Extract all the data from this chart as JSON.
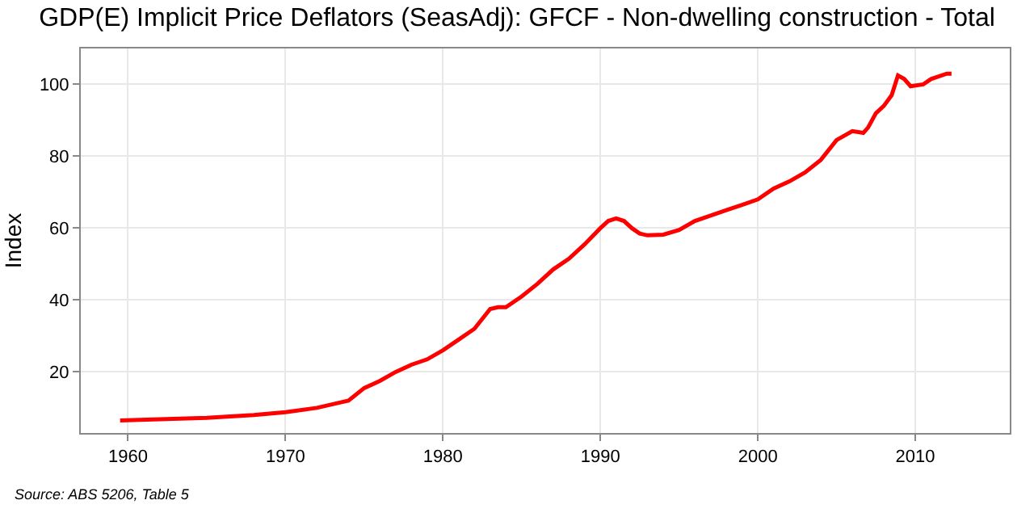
{
  "chart_data": {
    "type": "line",
    "title": "GDP(E) Implicit Price Deflators (SeasAdj): GFCF - Non-dwelling construction - Total",
    "ylabel": "Index",
    "annotations": [
      "Source: ABS 5206, Table 5"
    ],
    "x": [
      1959.5,
      1962,
      1965,
      1968,
      1970,
      1972,
      1973.5,
      1974,
      1975,
      1976,
      1977,
      1978,
      1979,
      1980,
      1981,
      1982,
      1983,
      1983.5,
      1984,
      1985,
      1986,
      1987,
      1988,
      1989,
      1990,
      1990.5,
      1991,
      1991.5,
      1992,
      1992.5,
      1993,
      1994,
      1995,
      1996,
      1997,
      1998,
      1999,
      2000,
      2001,
      2002,
      2003,
      2004,
      2005,
      2006,
      2006.7,
      2007,
      2007.5,
      2008,
      2008.5,
      2008.9,
      2009.3,
      2009.7,
      2010.5,
      2011,
      2012,
      2012.3
    ],
    "series": [
      {
        "color": "#ff0000",
        "values": [
          6.5,
          6.8,
          7.2,
          8,
          8.8,
          10,
          11.5,
          12,
          15.5,
          17.5,
          20,
          22,
          23.5,
          26,
          29,
          32,
          37.5,
          38,
          38,
          41,
          44.5,
          48.5,
          51.5,
          55.5,
          60,
          62,
          62.7,
          62,
          60,
          58.5,
          58,
          58.2,
          59.5,
          62,
          63.5,
          65,
          66.5,
          68,
          71,
          73,
          75.5,
          79,
          84.5,
          87,
          86.5,
          88,
          92,
          94,
          97,
          102.5,
          101.5,
          99.5,
          100,
          101.5,
          103,
          103
        ]
      }
    ],
    "xlim": [
      1957,
      2016
    ],
    "xticks": [
      1960,
      1970,
      1980,
      1990,
      2000,
      2010
    ],
    "ylim": [
      3,
      110
    ],
    "yticks": [
      20,
      40,
      60,
      80,
      100
    ],
    "grid": true,
    "marker": "none",
    "line_style": "solid"
  }
}
